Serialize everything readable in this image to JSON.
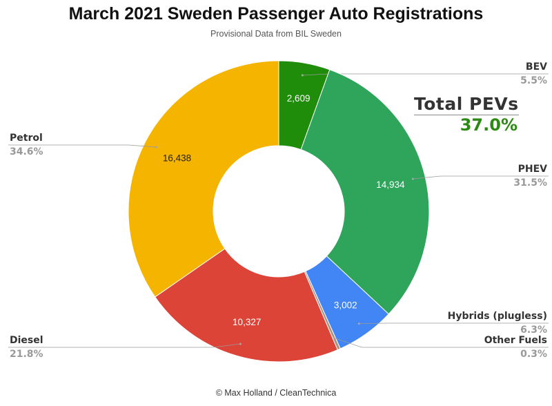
{
  "header": {
    "title": "March 2021 Sweden Passenger Auto Registrations",
    "subtitle": "Provisional Data from BIL Sweden"
  },
  "footer": {
    "credit": "© Max Holland / CleanTechnica"
  },
  "callout": {
    "label": "Total PEVs",
    "value": "37.0%"
  },
  "chart_data": {
    "type": "pie",
    "donut": true,
    "title": "March 2021 Sweden Passenger Auto Registrations",
    "subtitle": "Provisional Data from BIL Sweden",
    "slices": [
      {
        "name": "BEV",
        "value": 2609,
        "value_label": "2,609",
        "percent_label": "5.5%",
        "color": "#1f8c0a",
        "text_color": "#ffffff",
        "side": "right"
      },
      {
        "name": "PHEV",
        "value": 14934,
        "value_label": "14,934",
        "percent_label": "31.5%",
        "color": "#2ea55b",
        "text_color": "#ffffff",
        "side": "right"
      },
      {
        "name": "Hybrids (plugless)",
        "value": 3002,
        "value_label": "3,002",
        "percent_label": "6.3%",
        "color": "#4285f4",
        "text_color": "#ffffff",
        "side": "right"
      },
      {
        "name": "Other Fuels",
        "value": 150,
        "value_label": "",
        "percent_label": "0.3%",
        "color": "#b0917a",
        "text_color": "#ffffff",
        "side": "right"
      },
      {
        "name": "Diesel",
        "value": 10327,
        "value_label": "10,327",
        "percent_label": "21.8%",
        "color": "#db4437",
        "text_color": "#ffffff",
        "side": "left"
      },
      {
        "name": "Petrol",
        "value": 16438,
        "value_label": "16,438",
        "percent_label": "34.6%",
        "color": "#f4b400",
        "text_color": "#222222",
        "side": "left"
      }
    ]
  }
}
